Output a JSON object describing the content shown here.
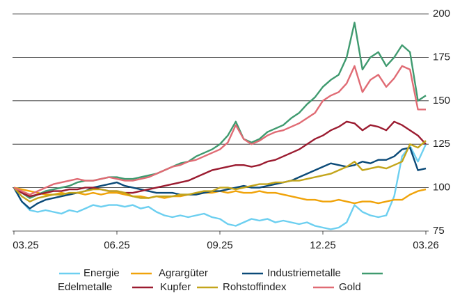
{
  "chart_data": {
    "type": "line",
    "categories": [
      "03.25",
      null,
      null,
      null,
      null,
      null,
      null,
      null,
      null,
      null,
      null,
      null,
      null,
      "06.25",
      null,
      null,
      null,
      null,
      null,
      null,
      null,
      null,
      null,
      null,
      null,
      null,
      "09.25",
      null,
      null,
      null,
      null,
      null,
      null,
      null,
      null,
      null,
      null,
      null,
      null,
      "12.25",
      null,
      null,
      null,
      null,
      null,
      null,
      null,
      null,
      null,
      null,
      null,
      null,
      "03.26"
    ],
    "ylim": [
      75,
      200
    ],
    "yticks": [
      75,
      100,
      125,
      150,
      175,
      200
    ],
    "grid": true,
    "series": [
      {
        "name": "Energie",
        "color": "#6ccff0",
        "values": [
          100,
          92,
          87,
          86,
          87,
          86,
          85,
          87,
          86,
          88,
          90,
          89,
          90,
          90,
          89,
          90,
          88,
          89,
          86,
          84,
          83,
          84,
          83,
          84,
          85,
          83,
          82,
          79,
          78,
          80,
          82,
          81,
          82,
          80,
          81,
          80,
          79,
          80,
          78,
          77,
          76,
          77,
          80,
          90,
          86,
          84,
          83,
          84,
          95,
          118,
          124,
          115,
          125
        ]
      },
      {
        "name": "Agrargüter",
        "color": "#f0a30a",
        "values": [
          100,
          99,
          98,
          97,
          96,
          96,
          97,
          96,
          97,
          96,
          97,
          96,
          97,
          97,
          96,
          95,
          95,
          94,
          95,
          94,
          95,
          95,
          96,
          96,
          97,
          97,
          98,
          97,
          98,
          97,
          97,
          98,
          97,
          97,
          96,
          95,
          94,
          93,
          93,
          92,
          92,
          93,
          92,
          91,
          92,
          92,
          91,
          92,
          93,
          93,
          96,
          98,
          99
        ]
      },
      {
        "name": "Industriemetalle",
        "color": "#0b4a78",
        "values": [
          100,
          92,
          88,
          91,
          93,
          94,
          95,
          96,
          97,
          98,
          100,
          101,
          102,
          103,
          101,
          100,
          99,
          98,
          97,
          97,
          97,
          96,
          96,
          96,
          97,
          98,
          98,
          99,
          100,
          101,
          100,
          100,
          101,
          102,
          103,
          104,
          106,
          108,
          110,
          112,
          114,
          113,
          112,
          113,
          115,
          114,
          116,
          116,
          118,
          122,
          123,
          110,
          111
        ]
      },
      {
        "name": "Edelmetalle",
        "color": "#3f9a6f",
        "values": [
          100,
          97,
          94,
          96,
          98,
          99,
          100,
          101,
          103,
          104,
          104,
          105,
          106,
          106,
          105,
          105,
          106,
          107,
          108,
          110,
          112,
          114,
          115,
          118,
          120,
          122,
          125,
          130,
          138,
          128,
          126,
          128,
          132,
          134,
          136,
          140,
          143,
          148,
          152,
          158,
          162,
          165,
          175,
          195,
          168,
          175,
          178,
          170,
          175,
          182,
          178,
          150,
          153
        ]
      },
      {
        "name": "Kupfer",
        "color": "#9b1b30",
        "values": [
          100,
          97,
          95,
          96,
          97,
          98,
          98,
          99,
          99,
          100,
          100,
          99,
          98,
          98,
          97,
          97,
          98,
          99,
          100,
          101,
          102,
          103,
          104,
          106,
          108,
          110,
          111,
          112,
          113,
          113,
          112,
          113,
          115,
          116,
          118,
          120,
          122,
          125,
          128,
          130,
          133,
          135,
          138,
          137,
          133,
          136,
          135,
          133,
          138,
          136,
          133,
          130,
          125
        ]
      },
      {
        "name": "Rohstoffindex",
        "color": "#c3a51b",
        "values": [
          100,
          95,
          92,
          94,
          95,
          96,
          96,
          97,
          97,
          98,
          99,
          99,
          98,
          98,
          97,
          95,
          94,
          94,
          95,
          95,
          95,
          96,
          96,
          97,
          98,
          98,
          100,
          100,
          99,
          100,
          101,
          102,
          102,
          103,
          103,
          104,
          104,
          105,
          106,
          107,
          108,
          110,
          112,
          115,
          110,
          111,
          112,
          111,
          113,
          115,
          125,
          123,
          127
        ]
      },
      {
        "name": "Gold",
        "color": "#e06b74",
        "values": [
          100,
          98,
          96,
          98,
          100,
          102,
          103,
          104,
          105,
          104,
          104,
          105,
          106,
          105,
          104,
          104,
          105,
          106,
          108,
          110,
          112,
          113,
          115,
          116,
          118,
          120,
          122,
          126,
          136,
          128,
          125,
          127,
          130,
          132,
          133,
          135,
          137,
          140,
          143,
          150,
          153,
          155,
          160,
          170,
          155,
          162,
          165,
          158,
          163,
          170,
          168,
          145,
          145
        ]
      }
    ]
  }
}
